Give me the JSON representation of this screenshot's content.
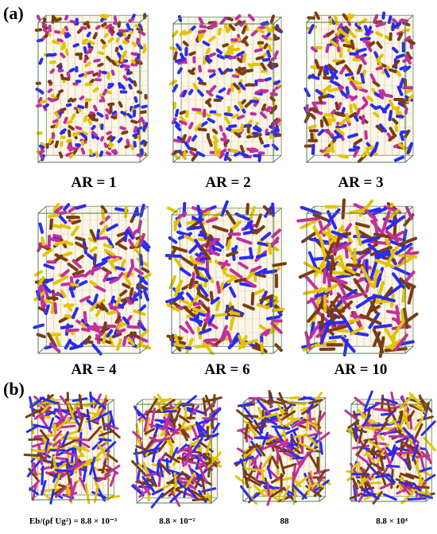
{
  "panel_a": {
    "label": "(a)",
    "cases": [
      {
        "label": "AR = 1"
      },
      {
        "label": "AR = 2"
      },
      {
        "label": "AR = 3"
      },
      {
        "label": "AR = 4"
      },
      {
        "label": "AR = 6"
      },
      {
        "label": "AR = 10"
      }
    ]
  },
  "panel_b": {
    "label": "(b)",
    "cases": [
      {
        "label": "Eb/(ρf Ug²) = 8.8 × 10⁻³"
      },
      {
        "label": "8.8 × 10⁻²"
      },
      {
        "label": "88"
      },
      {
        "label": "8.8 × 10⁴"
      }
    ]
  }
}
